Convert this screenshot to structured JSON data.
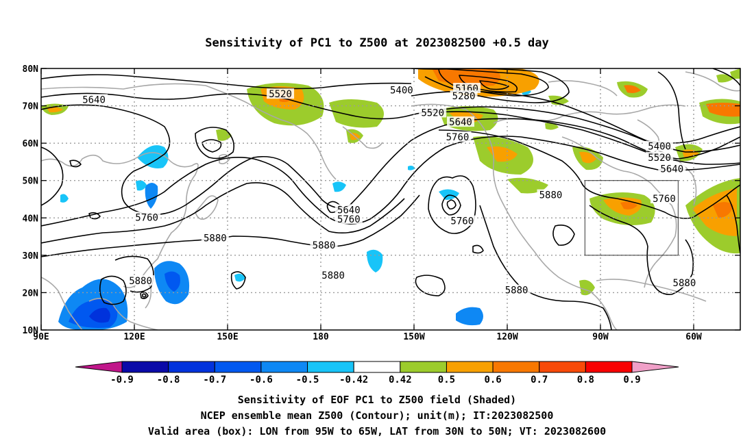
{
  "title": "Sensitivity of PC1 to Z500 at 2023082500 +0.5 day",
  "map": {
    "lon_min": 90,
    "lon_max": 315,
    "lat_min": 10,
    "lat_max": 80,
    "x_ticks": [
      {
        "lon": 90,
        "label": "90E"
      },
      {
        "lon": 120,
        "label": "120E"
      },
      {
        "lon": 150,
        "label": "150E"
      },
      {
        "lon": 180,
        "label": "180"
      },
      {
        "lon": 210,
        "label": "150W"
      },
      {
        "lon": 240,
        "label": "120W"
      },
      {
        "lon": 270,
        "label": "90W"
      },
      {
        "lon": 300,
        "label": "60W"
      }
    ],
    "y_ticks": [
      {
        "lat": 10,
        "label": "10N"
      },
      {
        "lat": 20,
        "label": "20N"
      },
      {
        "lat": 30,
        "label": "30N"
      },
      {
        "lat": 40,
        "label": "40N"
      },
      {
        "lat": 50,
        "label": "50N"
      },
      {
        "lat": 60,
        "label": "60N"
      },
      {
        "lat": 70,
        "label": "70N"
      },
      {
        "lat": 80,
        "label": "80N"
      }
    ],
    "valid_box": {
      "lon_min": 265,
      "lon_max": 295,
      "lat_min": 30,
      "lat_max": 50
    },
    "contour_labels": [
      {
        "text": "5640",
        "lon": 107,
        "lat": 71.5
      },
      {
        "text": "5520",
        "lon": 167,
        "lat": 73
      },
      {
        "text": "5400",
        "lon": 206,
        "lat": 74
      },
      {
        "text": "5160",
        "lon": 227,
        "lat": 74.5
      },
      {
        "text": "5280",
        "lon": 226,
        "lat": 72.5
      },
      {
        "text": "5520",
        "lon": 216,
        "lat": 68
      },
      {
        "text": "5640",
        "lon": 225,
        "lat": 65.5
      },
      {
        "text": "5760",
        "lon": 224,
        "lat": 61.5
      },
      {
        "text": "5400",
        "lon": 289,
        "lat": 59
      },
      {
        "text": "5520",
        "lon": 289,
        "lat": 56
      },
      {
        "text": "5640",
        "lon": 293,
        "lat": 53
      },
      {
        "text": "5760",
        "lon": 290.5,
        "lat": 45
      },
      {
        "text": "5880",
        "lon": 254,
        "lat": 46
      },
      {
        "text": "5640",
        "lon": 189,
        "lat": 42
      },
      {
        "text": "5760",
        "lon": 189,
        "lat": 39.5
      },
      {
        "text": "5760",
        "lon": 225.5,
        "lat": 39
      },
      {
        "text": "5760",
        "lon": 124,
        "lat": 40
      },
      {
        "text": "5880",
        "lon": 146,
        "lat": 34.5
      },
      {
        "text": "5880",
        "lon": 181,
        "lat": 32.5
      },
      {
        "text": "5880",
        "lon": 184,
        "lat": 24.5
      },
      {
        "text": "5880",
        "lon": 243,
        "lat": 20.5
      },
      {
        "text": "5880",
        "lon": 297,
        "lat": 22.5
      },
      {
        "text": "5880",
        "lon": 122,
        "lat": 23
      }
    ]
  },
  "colorbar": {
    "colors": [
      "#c0168a",
      "#0a0aa8",
      "#0032dc",
      "#0058f0",
      "#0e88f4",
      "#18c4f8",
      "#ffffff",
      "#9ccc2c",
      "#f8a000",
      "#f87800",
      "#f84a08",
      "#f80000",
      "#f0a0c8"
    ],
    "tick_labels": [
      "-0.9",
      "-0.8",
      "-0.7",
      "-0.6",
      "-0.5",
      "-0.42",
      "0.42",
      "0.5",
      "0.6",
      "0.7",
      "0.8",
      "0.9"
    ]
  },
  "caption": {
    "line1": "Sensitivity of EOF PC1 to Z500 field (Shaded)",
    "line2": "NCEP ensemble mean Z500 (Contour); unit(m); IT:2023082500",
    "line3": "Valid area (box): LON from 95W to 65W, LAT from 30N to 50N; VT: 2023082600"
  },
  "icons": {
    "coastline": "coastline-outline",
    "contour": "geopotential-contour"
  }
}
